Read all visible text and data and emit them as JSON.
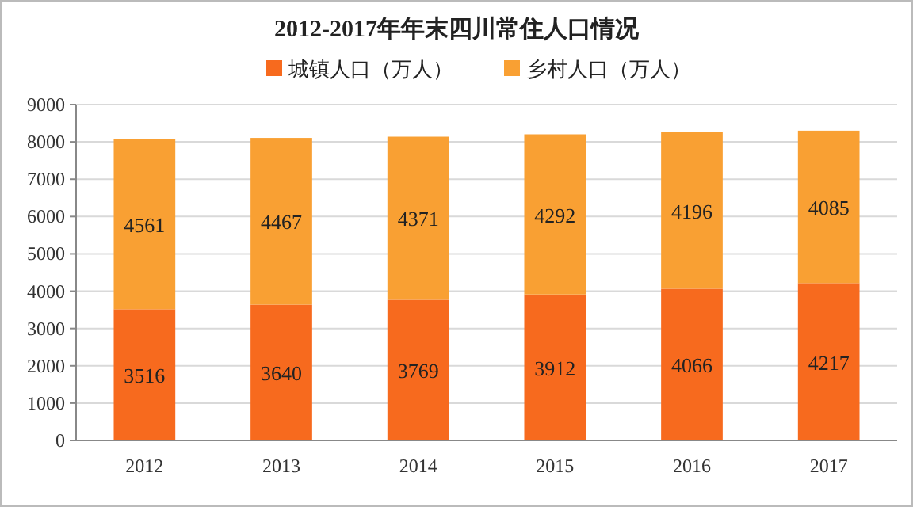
{
  "chart_data": {
    "type": "bar",
    "title": "2012-2017年年末四川常住人口情况",
    "categories": [
      "2012",
      "2013",
      "2014",
      "2015",
      "2016",
      "2017"
    ],
    "series": [
      {
        "name": "城镇人口（万人）",
        "color": "#f76a1e",
        "values": [
          3516,
          3640,
          3769,
          3912,
          4066,
          4217
        ]
      },
      {
        "name": "乡村人口（万人）",
        "color": "#f9a033",
        "values": [
          4561,
          4467,
          4371,
          4292,
          4196,
          4085
        ]
      }
    ],
    "stacked": true,
    "data_labels": true,
    "ylim": [
      0,
      9000
    ],
    "yticks": [
      0,
      1000,
      2000,
      3000,
      4000,
      5000,
      6000,
      7000,
      8000,
      9000
    ],
    "grid": "y",
    "legend": "top"
  }
}
